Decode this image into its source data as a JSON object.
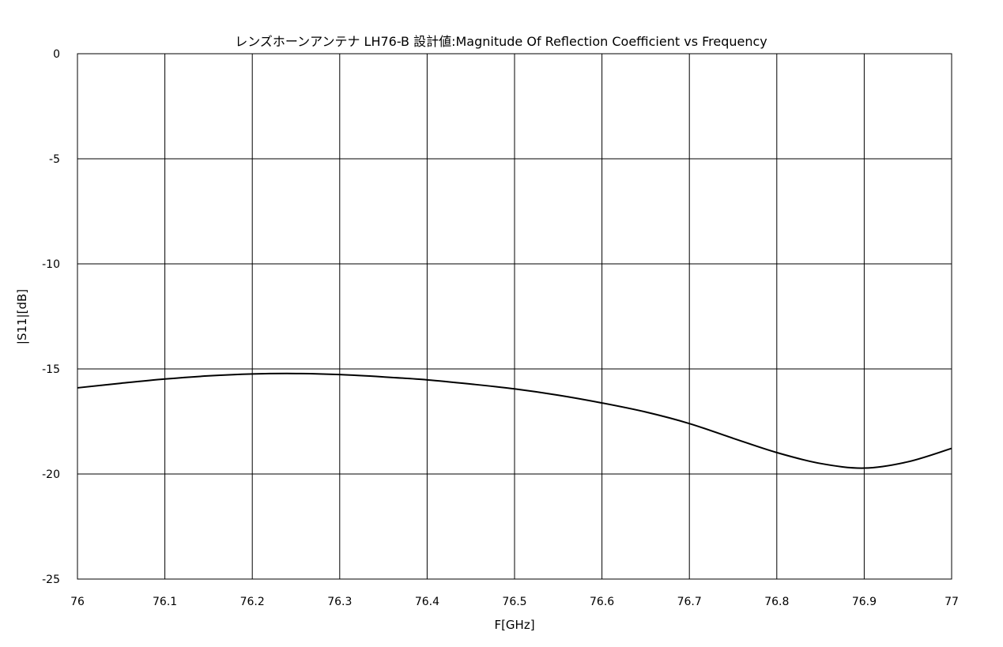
{
  "chart_data": {
    "type": "line",
    "title": "レンズホーンアンテナ LH76-B 設計値:Magnitude Of Reflection Coefficient vs Frequency",
    "xlabel": "F[GHz]",
    "ylabel": "|S11|[dB]",
    "xlim": [
      76,
      77
    ],
    "ylim": [
      -25,
      0
    ],
    "xticks": [
      "76",
      "76.1",
      "76.2",
      "76.3",
      "76.4",
      "76.5",
      "76.6",
      "76.7",
      "76.8",
      "76.9",
      "77"
    ],
    "yticks": [
      "0",
      "-5",
      "-10",
      "-15",
      "-20",
      "-25"
    ],
    "grid": true,
    "line_color": "#000000",
    "series": [
      {
        "x": [
          76.0,
          76.05,
          76.1,
          76.15,
          76.2,
          76.25,
          76.3,
          76.35,
          76.4,
          76.45,
          76.5,
          76.55,
          76.6,
          76.65,
          76.7,
          76.75,
          76.8,
          76.85,
          76.9,
          76.95,
          77.0
        ],
        "values": [
          -15.9,
          -15.68,
          -15.48,
          -15.33,
          -15.24,
          -15.22,
          -15.27,
          -15.38,
          -15.52,
          -15.72,
          -15.95,
          -16.25,
          -16.62,
          -17.05,
          -17.6,
          -18.3,
          -18.98,
          -19.5,
          -19.72,
          -19.42,
          -18.78
        ]
      }
    ]
  }
}
